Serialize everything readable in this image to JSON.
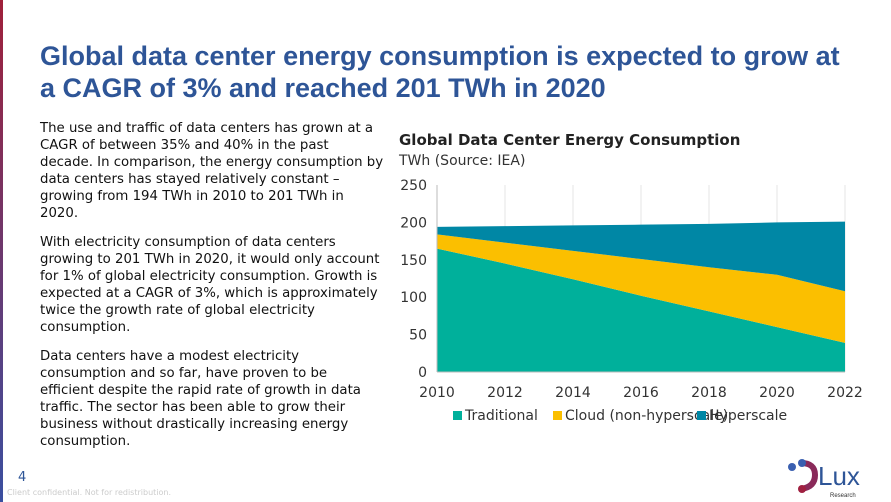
{
  "title": "Global data center energy consumption is expected to grow at a CAGR of 3% and reached 201 TWh in 2020",
  "paragraphs": [
    "The use and traffic of data centers has grown at a CAGR of between 35% and 40% in the past decade. In comparison, the energy consumption by data centers has stayed relatively constant – growing from 194 TWh in 2010 to 201 TWh in 2020.",
    "With electricity consumption of data centers growing to 201 TWh in 2020, it would only account for 1% of global electricity consumption. Growth is expected at a CAGR of 3%, which is approximately twice the growth rate of global electricity consumption.",
    "Data centers have a modest electricity consumption and so far, have proven to be efficient despite the rapid rate of growth in data traffic. The sector has been able to grow their business without drastically increasing energy consumption."
  ],
  "footer": {
    "page": "4",
    "confidential": "Client confidential. Not for redistribution.",
    "logo": "Lux Research"
  },
  "chart_data": {
    "type": "area",
    "stacked": true,
    "title": "Global Data Center Energy Consumption",
    "subtitle": "TWh (Source: IEA)",
    "x": [
      2010,
      2012,
      2014,
      2016,
      2018,
      2020,
      2022
    ],
    "xticks": [
      "2010",
      "2012",
      "2014",
      "2016",
      "2018",
      "2020",
      "2022"
    ],
    "yticks": [
      "0",
      "50",
      "100",
      "150",
      "200",
      "250"
    ],
    "ylim": [
      0,
      250
    ],
    "grid": "vertical",
    "legend": "bottom",
    "series": [
      {
        "name": "Traditional",
        "color": "#00b09b",
        "values": [
          165,
          145,
          124,
          102,
          81,
          60,
          39
        ]
      },
      {
        "name": "Cloud (non-hyperscale)",
        "color": "#fbbf00",
        "values": [
          19,
          28,
          38,
          49,
          59,
          70,
          69
        ]
      },
      {
        "name": "Hyperscale",
        "color": "#0087a5",
        "values": [
          10,
          22,
          34,
          46,
          58,
          70,
          93
        ]
      }
    ]
  }
}
